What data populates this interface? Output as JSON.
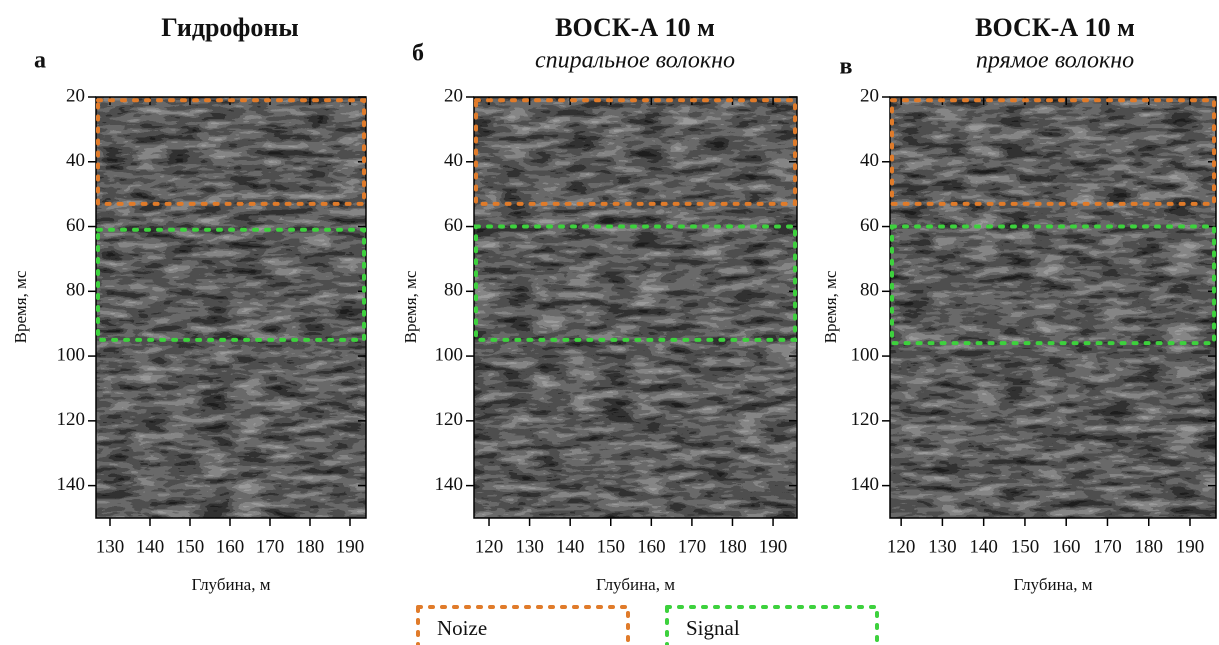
{
  "chart_data": [
    {
      "type": "seismic",
      "title": "Гидрофоны",
      "panel_label": "а",
      "x_label": "Глубина, м",
      "y_label": "Время, мс",
      "xlim": [
        126.5,
        194
      ],
      "ylim": [
        20,
        150
      ],
      "xticks": [
        130,
        140,
        150,
        160,
        170,
        180,
        190
      ],
      "yticks": [
        20,
        40,
        60,
        80,
        100,
        120,
        140
      ],
      "noise_range": [
        21,
        53
      ],
      "signal_range": [
        61,
        95
      ]
    },
    {
      "type": "seismic",
      "title": "ВОСК-А 10 м",
      "subtitle": "спиральное волокно",
      "panel_label": "б",
      "x_label": "Глубина, м",
      "y_label": "Время, мс",
      "xlim": [
        116.3,
        195.9
      ],
      "ylim": [
        20,
        150
      ],
      "xticks": [
        120,
        130,
        140,
        150,
        160,
        170,
        180,
        190
      ],
      "yticks": [
        20,
        40,
        60,
        80,
        100,
        120,
        140
      ],
      "noise_range": [
        21,
        53
      ],
      "signal_range": [
        60,
        95
      ]
    },
    {
      "type": "seismic",
      "title": "ВОСК-А 10 м",
      "subtitle": "прямое волокно",
      "panel_label": "в",
      "x_label": "Глубина, м",
      "y_label": "Время, мс",
      "xlim": [
        117.3,
        196.3
      ],
      "ylim": [
        20,
        150
      ],
      "xticks": [
        120,
        130,
        140,
        150,
        160,
        170,
        180,
        190
      ],
      "yticks": [
        20,
        40,
        60,
        80,
        100,
        120,
        140
      ],
      "noise_range": [
        21,
        53
      ],
      "signal_range": [
        60,
        96
      ]
    }
  ],
  "legend": [
    {
      "name": "Noize",
      "color": "#e07b2a"
    },
    {
      "name": "Signal",
      "color": "#3dd13d"
    }
  ]
}
